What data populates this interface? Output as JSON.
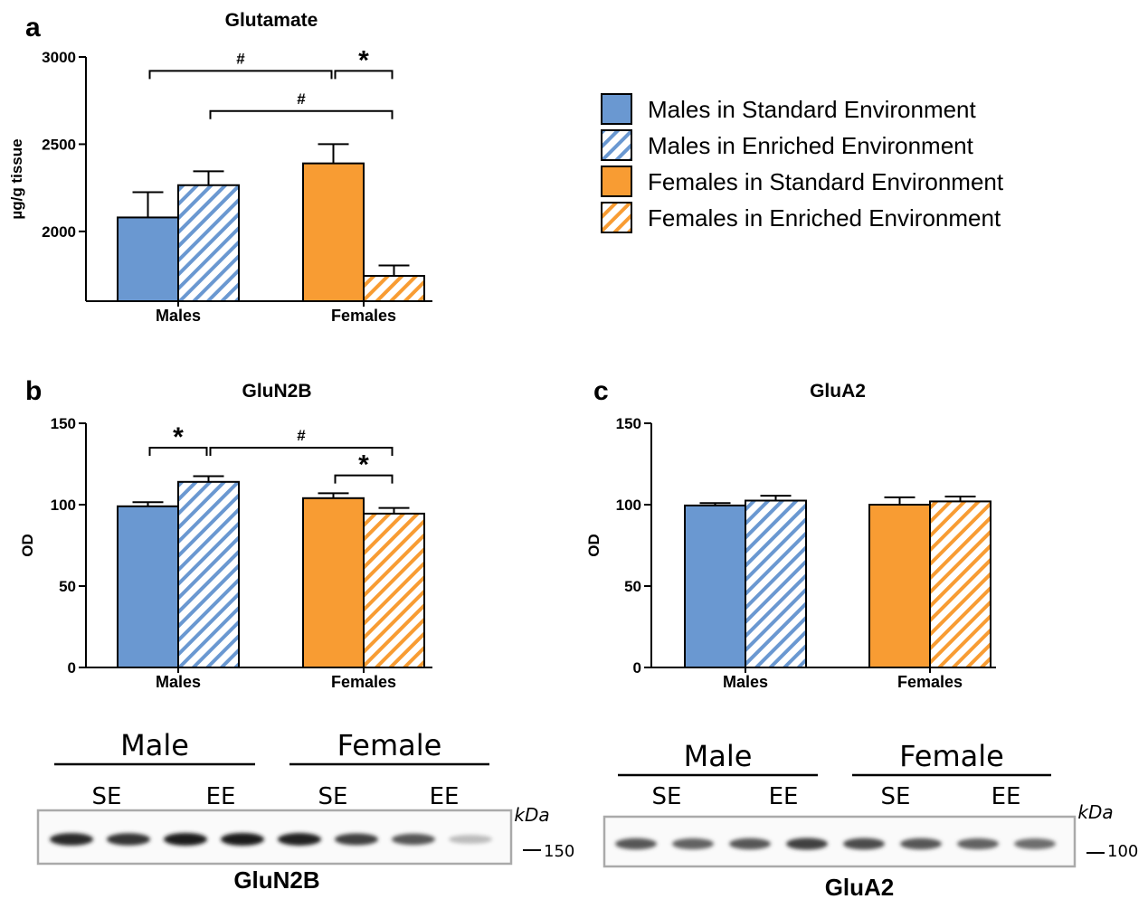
{
  "colors": {
    "male_standard": "#6a98d1",
    "male_enriched_stripe": "#6a98d1",
    "female_standard": "#f89c33",
    "female_enriched_stripe": "#f89c33",
    "axis": "#000000",
    "blot_border": "#aaaaaa"
  },
  "legend": {
    "placement": "right of panel a",
    "items": [
      {
        "label": "Males in Standard Environment",
        "pattern": "solid",
        "color": "#6a98d1"
      },
      {
        "label": "Males in Enriched Environment",
        "pattern": "striped",
        "color": "#6a98d1"
      },
      {
        "label": "Females in Standard Environment",
        "pattern": "solid",
        "color": "#f89c33"
      },
      {
        "label": "Females in Enriched Environment",
        "pattern": "striped",
        "color": "#f89c33"
      }
    ]
  },
  "chart_data": [
    {
      "panel": "a",
      "type": "bar",
      "title": "Glutamate",
      "ylabel": "µg/g tissue",
      "xlabel": "",
      "ylim": [
        1600,
        3000
      ],
      "yticks": [
        2000,
        2500,
        3000
      ],
      "categories": [
        "Males",
        "Females"
      ],
      "series": [
        {
          "values": [
            2080,
            2390
          ],
          "errors": [
            145,
            110
          ]
        },
        {
          "values": [
            2265,
            1745
          ],
          "errors": [
            80,
            60
          ]
        }
      ],
      "annotations": [
        {
          "text": "#",
          "from": [
            0,
            0
          ],
          "to": [
            1,
            0
          ],
          "level": 2920
        },
        {
          "text": "*",
          "from": [
            1,
            0
          ],
          "to": [
            1,
            1
          ],
          "level": 2920
        },
        {
          "text": "#",
          "from": [
            0,
            1
          ],
          "to": [
            1,
            1
          ],
          "level": 2690
        }
      ],
      "grid": false
    },
    {
      "panel": "b",
      "type": "bar",
      "title": "GluN2B",
      "ylabel": "OD",
      "xlabel": "",
      "ylim": [
        0,
        150
      ],
      "yticks": [
        0,
        50,
        100,
        150
      ],
      "categories": [
        "Males",
        "Females"
      ],
      "series": [
        {
          "values": [
            99,
            104
          ],
          "errors": [
            2.5,
            3
          ]
        },
        {
          "values": [
            114,
            94.5
          ],
          "errors": [
            3.5,
            3.5
          ]
        }
      ],
      "annotations": [
        {
          "text": "*",
          "from": [
            0,
            0
          ],
          "to": [
            0,
            1
          ],
          "level": 135
        },
        {
          "text": "#",
          "from": [
            0,
            1
          ],
          "to": [
            1,
            1
          ],
          "level": 135
        },
        {
          "text": "*",
          "from": [
            1,
            0
          ],
          "to": [
            1,
            1
          ],
          "level": 118
        }
      ],
      "grid": false
    },
    {
      "panel": "c",
      "type": "bar",
      "title": "GluA2",
      "ylabel": "OD",
      "xlabel": "",
      "ylim": [
        0,
        150
      ],
      "yticks": [
        0,
        50,
        100,
        150
      ],
      "categories": [
        "Males",
        "Females"
      ],
      "series": [
        {
          "values": [
            99.5,
            100
          ],
          "errors": [
            1.5,
            4.5
          ]
        },
        {
          "values": [
            102.5,
            102
          ],
          "errors": [
            3,
            3
          ]
        }
      ],
      "annotations": [],
      "grid": false
    }
  ],
  "blots": [
    {
      "panel": "b",
      "name": "GluN2B",
      "group_labels": [
        "Male",
        "Female"
      ],
      "lane_labels": [
        "SE",
        "EE",
        "SE",
        "EE"
      ],
      "unit": "kDa",
      "marker": "150",
      "band_intensities": [
        0.95,
        0.9,
        1.0,
        1.0,
        0.98,
        0.85,
        0.75,
        0.3
      ]
    },
    {
      "panel": "c",
      "name": "GluA2",
      "group_labels": [
        "Male",
        "Female"
      ],
      "lane_labels": [
        "SE",
        "EE",
        "SE",
        "EE"
      ],
      "unit": "kDa",
      "marker": "100",
      "band_intensities": [
        0.75,
        0.7,
        0.75,
        0.85,
        0.8,
        0.75,
        0.7,
        0.65
      ]
    }
  ],
  "panel_letters": [
    "a",
    "b",
    "c"
  ]
}
